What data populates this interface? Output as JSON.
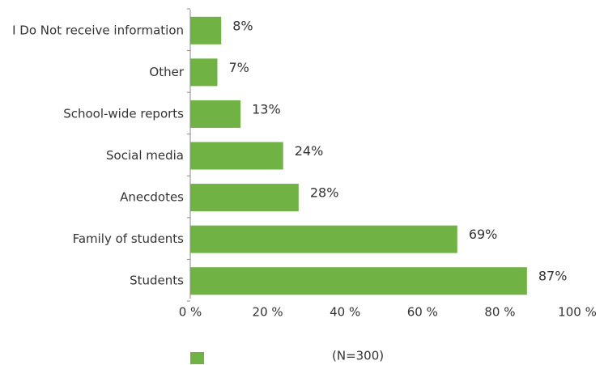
{
  "chart_data": {
    "type": "bar",
    "orientation": "horizontal",
    "categories": [
      "I Do Not receive information",
      "Other",
      "School-wide reports",
      "Social media",
      "Anecdotes",
      "Family of students",
      "Students"
    ],
    "values": [
      8,
      7,
      13,
      24,
      28,
      69,
      87
    ],
    "value_labels": [
      "8%",
      "7%",
      "13%",
      "24%",
      "28%",
      "69%",
      "87%"
    ],
    "color": "#70b244",
    "xlim": [
      0,
      100
    ],
    "xticks": [
      {
        "value": 0,
        "label": "0 %"
      },
      {
        "value": 20,
        "label": "20 %"
      },
      {
        "value": 40,
        "label": "40 %"
      },
      {
        "value": 60,
        "label": "60 %"
      },
      {
        "value": 80,
        "label": "80 %"
      },
      {
        "value": 100,
        "label": "100 %"
      }
    ],
    "annotation": "(N=300)"
  }
}
